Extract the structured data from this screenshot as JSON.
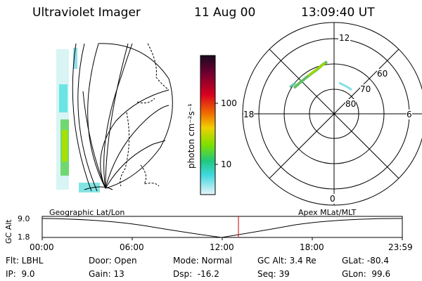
{
  "header": {
    "instrument": "Ultraviolet Imager",
    "date": "11 Aug 00",
    "time": "13:09:40 UT"
  },
  "colorbar": {
    "unit_label": "photon cm⁻²s⁻¹",
    "ticks": [
      "100",
      "10"
    ]
  },
  "polar_plot": {
    "mlt_labels": [
      "12",
      "18",
      "6",
      "0"
    ],
    "mlat_labels": [
      "60",
      "70",
      "80"
    ]
  },
  "altitude_plot": {
    "left_label": "Geographic Lat/Lon",
    "right_label": "Apex MLat/MLT",
    "y_axis_label": "GC Alt",
    "y_ticks": [
      "9.0",
      "1.8"
    ],
    "x_ticks": [
      "00:00",
      "06:00",
      "12:00",
      "18:00",
      "23:59"
    ],
    "marker_color": "#cc0000"
  },
  "info_rows": [
    {
      "c1": "Flt: LBHL",
      "c2": "Door: Open",
      "c3": "Mode: Normal",
      "c4": "GC Alt: 3.4 Re",
      "c5": "GLat: -80.4"
    },
    {
      "c1": "IP:  9.0",
      "c2": "Gain: 13",
      "c3": "Dsp:  -16.2",
      "c4": "Seq: 39",
      "c5": "GLon:  99.6"
    }
  ]
}
